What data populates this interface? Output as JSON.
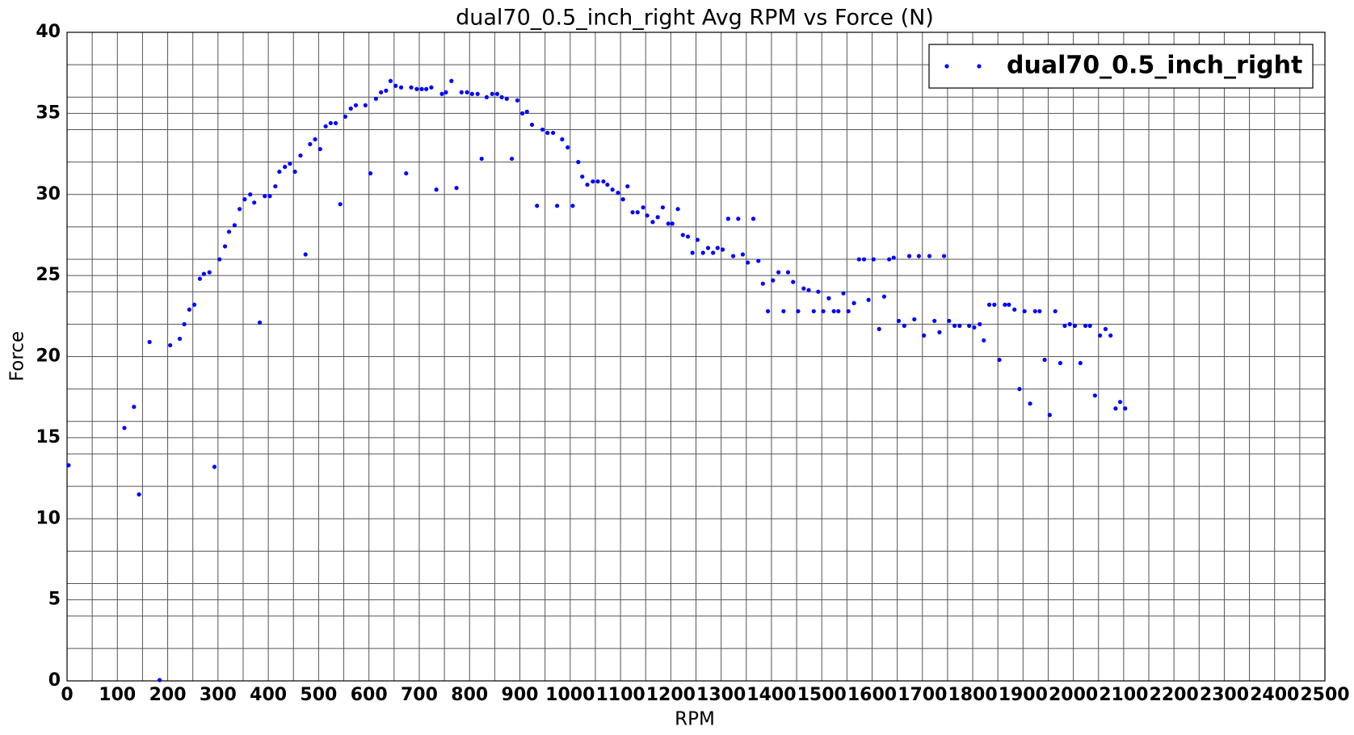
{
  "chart_data": {
    "type": "scatter",
    "title": "dual70_0.5_inch_right Avg RPM vs Force (N)",
    "x_label": "RPM",
    "y_label": "Force",
    "x": [
      3,
      114,
      133,
      143,
      164,
      184,
      205,
      224,
      233,
      243,
      253,
      264,
      272,
      283,
      293,
      303,
      314,
      322,
      333,
      343,
      353,
      364,
      372,
      383,
      393,
      403,
      414,
      422,
      433,
      443,
      453,
      464,
      474,
      483,
      493,
      503,
      514,
      524,
      534,
      543,
      553,
      564,
      574,
      593,
      603,
      614,
      624,
      634,
      643,
      653,
      664,
      674,
      684,
      695,
      705,
      714,
      724,
      734,
      745,
      753,
      764,
      774,
      784,
      795,
      805,
      816,
      824,
      834,
      845,
      855,
      864,
      874,
      884,
      895,
      905,
      914,
      924,
      934,
      945,
      955,
      966,
      974,
      984,
      995,
      1005,
      1016,
      1024,
      1034,
      1045,
      1055,
      1066,
      1074,
      1084,
      1095,
      1105,
      1114,
      1124,
      1134,
      1145,
      1153,
      1164,
      1174,
      1184,
      1195,
      1203,
      1214,
      1224,
      1234,
      1243,
      1253,
      1264,
      1274,
      1284,
      1293,
      1303,
      1314,
      1324,
      1334,
      1343,
      1353,
      1364,
      1374,
      1383,
      1393,
      1403,
      1414,
      1424,
      1433,
      1443,
      1453,
      1464,
      1474,
      1484,
      1493,
      1503,
      1514,
      1524,
      1533,
      1543,
      1553,
      1564,
      1574,
      1584,
      1593,
      1603,
      1614,
      1624,
      1634,
      1643,
      1653,
      1664,
      1674,
      1684,
      1693,
      1703,
      1714,
      1724,
      1734,
      1743,
      1753,
      1764,
      1774,
      1793,
      1803,
      1814,
      1822,
      1833,
      1843,
      1853,
      1864,
      1872,
      1883,
      1893,
      1903,
      1914,
      1924,
      1933,
      1943,
      1953,
      1964,
      1974,
      1983,
      1993,
      2003,
      2014,
      2024,
      2033,
      2043,
      2053,
      2064,
      2074,
      2084,
      2093,
      2103
    ],
    "series": [
      {
        "name": "dual70_0.5_inch_right",
        "color": "#0000ff",
        "values": [
          13.3,
          15.6,
          16.9,
          11.5,
          20.9,
          0.05,
          20.7,
          21.1,
          22.0,
          22.9,
          23.2,
          24.8,
          25.1,
          25.2,
          13.2,
          26.0,
          26.8,
          27.7,
          28.1,
          29.1,
          29.7,
          30.0,
          29.5,
          22.1,
          29.9,
          29.9,
          30.5,
          31.4,
          31.7,
          31.9,
          31.4,
          32.4,
          26.3,
          33.1,
          33.4,
          32.8,
          34.2,
          34.4,
          34.4,
          29.4,
          34.8,
          35.3,
          35.5,
          35.5,
          31.3,
          35.9,
          36.3,
          36.4,
          37.0,
          36.7,
          36.6,
          31.3,
          36.6,
          36.5,
          36.5,
          36.5,
          36.6,
          30.3,
          36.2,
          36.3,
          37.0,
          30.4,
          36.3,
          36.3,
          36.2,
          36.2,
          32.2,
          36.0,
          36.2,
          36.2,
          36.0,
          35.9,
          32.2,
          35.8,
          35.0,
          35.1,
          34.3,
          29.3,
          34.0,
          33.8,
          33.8,
          29.3,
          33.4,
          32.9,
          29.3,
          32.0,
          31.1,
          30.6,
          30.8,
          30.8,
          30.8,
          30.6,
          30.3,
          30.1,
          29.7,
          30.5,
          28.9,
          28.9,
          29.2,
          28.7,
          28.3,
          28.6,
          29.2,
          28.2,
          28.2,
          29.1,
          27.5,
          27.4,
          26.4,
          27.2,
          26.4,
          26.7,
          26.4,
          26.7,
          26.6,
          28.5,
          26.2,
          28.5,
          26.3,
          25.8,
          28.5,
          25.9,
          24.5,
          22.8,
          24.7,
          25.2,
          22.8,
          25.2,
          24.6,
          22.8,
          24.2,
          24.1,
          22.8,
          24.0,
          22.8,
          23.6,
          22.8,
          22.8,
          23.9,
          22.8,
          23.3,
          26.0,
          26.0,
          23.5,
          26.0,
          21.7,
          23.7,
          26.0,
          26.1,
          22.2,
          21.9,
          26.2,
          22.3,
          26.2,
          21.3,
          26.2,
          22.2,
          21.5,
          26.2,
          22.2,
          21.9,
          21.9,
          21.9,
          21.8,
          22.0,
          21.0,
          23.2,
          23.2,
          19.8,
          23.2,
          23.2,
          22.9,
          18.0,
          22.8,
          17.1,
          22.8,
          22.8,
          19.8,
          16.4,
          22.8,
          19.6,
          21.9,
          22.0,
          21.9,
          19.6,
          21.9,
          21.9,
          17.6,
          21.3,
          21.7,
          21.3,
          16.8,
          17.2,
          16.8
        ]
      }
    ],
    "xlim": [
      0,
      2500
    ],
    "xticks": [
      0,
      100,
      200,
      300,
      400,
      500,
      600,
      700,
      800,
      900,
      1000,
      1100,
      1200,
      1300,
      1400,
      1500,
      1600,
      1700,
      1800,
      1900,
      2000,
      2100,
      2200,
      2300,
      2400,
      2500
    ],
    "xminorticks": [
      50,
      150,
      250,
      350,
      450,
      550,
      650,
      750,
      850,
      950,
      1050,
      1150,
      1250,
      1350,
      1450,
      1550,
      1650,
      1750,
      1850,
      1950,
      2050,
      2150,
      2250,
      2350,
      2450
    ],
    "ylim": [
      0,
      40
    ],
    "yticks": [
      0,
      5,
      10,
      15,
      20,
      25,
      30,
      35,
      40
    ],
    "yminorticks": [
      2,
      4,
      6,
      8,
      12,
      14,
      16,
      18,
      22,
      24,
      26,
      28,
      32,
      34,
      36,
      38
    ],
    "grid": true,
    "legend": "upper right"
  }
}
